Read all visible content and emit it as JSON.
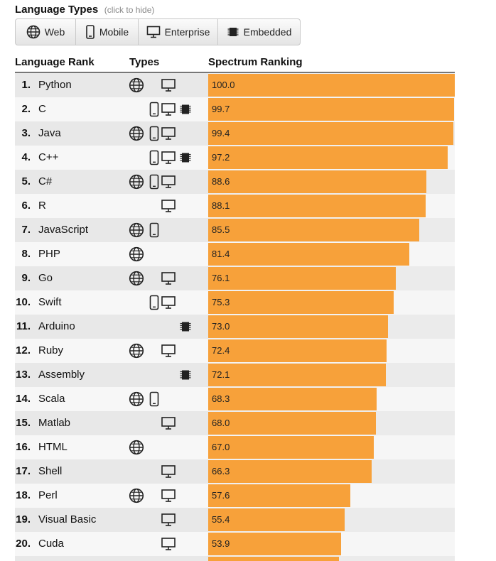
{
  "header": {
    "title": "Language Types",
    "hint": "(click to hide)"
  },
  "filters": [
    {
      "label": "Web",
      "icon": "globe-icon"
    },
    {
      "label": "Mobile",
      "icon": "phone-icon"
    },
    {
      "label": "Enterprise",
      "icon": "monitor-icon"
    },
    {
      "label": "Embedded",
      "icon": "chip-icon"
    }
  ],
  "table": {
    "columns": {
      "rank": "Language Rank",
      "types": "Types",
      "spectrum": "Spectrum Ranking"
    },
    "max_score": 100,
    "rows": [
      {
        "rank": "1.",
        "name": "Python",
        "types": [
          "web",
          "enterprise"
        ],
        "score": 100.0,
        "label": "100.0"
      },
      {
        "rank": "2.",
        "name": "C",
        "types": [
          "mobile",
          "enterprise",
          "embedded"
        ],
        "score": 99.7,
        "label": "99.7"
      },
      {
        "rank": "3.",
        "name": "Java",
        "types": [
          "web",
          "mobile",
          "enterprise"
        ],
        "score": 99.4,
        "label": "99.4"
      },
      {
        "rank": "4.",
        "name": "C++",
        "types": [
          "mobile",
          "enterprise",
          "embedded"
        ],
        "score": 97.2,
        "label": "97.2"
      },
      {
        "rank": "5.",
        "name": "C#",
        "types": [
          "web",
          "mobile",
          "enterprise"
        ],
        "score": 88.6,
        "label": "88.6"
      },
      {
        "rank": "6.",
        "name": "R",
        "types": [
          "enterprise"
        ],
        "score": 88.1,
        "label": "88.1"
      },
      {
        "rank": "7.",
        "name": "JavaScript",
        "types": [
          "web",
          "mobile"
        ],
        "score": 85.5,
        "label": "85.5"
      },
      {
        "rank": "8.",
        "name": "PHP",
        "types": [
          "web"
        ],
        "score": 81.4,
        "label": "81.4"
      },
      {
        "rank": "9.",
        "name": "Go",
        "types": [
          "web",
          "enterprise"
        ],
        "score": 76.1,
        "label": "76.1"
      },
      {
        "rank": "10.",
        "name": "Swift",
        "types": [
          "mobile",
          "enterprise"
        ],
        "score": 75.3,
        "label": "75.3"
      },
      {
        "rank": "11.",
        "name": "Arduino",
        "types": [
          "embedded"
        ],
        "score": 73.0,
        "label": "73.0"
      },
      {
        "rank": "12.",
        "name": "Ruby",
        "types": [
          "web",
          "enterprise"
        ],
        "score": 72.4,
        "label": "72.4"
      },
      {
        "rank": "13.",
        "name": "Assembly",
        "types": [
          "embedded"
        ],
        "score": 72.1,
        "label": "72.1"
      },
      {
        "rank": "14.",
        "name": "Scala",
        "types": [
          "web",
          "mobile"
        ],
        "score": 68.3,
        "label": "68.3"
      },
      {
        "rank": "15.",
        "name": "Matlab",
        "types": [
          "enterprise"
        ],
        "score": 68.0,
        "label": "68.0"
      },
      {
        "rank": "16.",
        "name": "HTML",
        "types": [
          "web"
        ],
        "score": 67.0,
        "label": "67.0"
      },
      {
        "rank": "17.",
        "name": "Shell",
        "types": [
          "enterprise"
        ],
        "score": 66.3,
        "label": "66.3"
      },
      {
        "rank": "18.",
        "name": "Perl",
        "types": [
          "web",
          "enterprise"
        ],
        "score": 57.6,
        "label": "57.6"
      },
      {
        "rank": "19.",
        "name": "Visual Basic",
        "types": [
          "enterprise"
        ],
        "score": 55.4,
        "label": "55.4"
      },
      {
        "rank": "20.",
        "name": "Cuda",
        "types": [
          "enterprise"
        ],
        "score": 53.9,
        "label": "53.9"
      }
    ],
    "partial_row": {
      "score": 53.0
    }
  },
  "colors": {
    "bar": "#f7a13a"
  }
}
